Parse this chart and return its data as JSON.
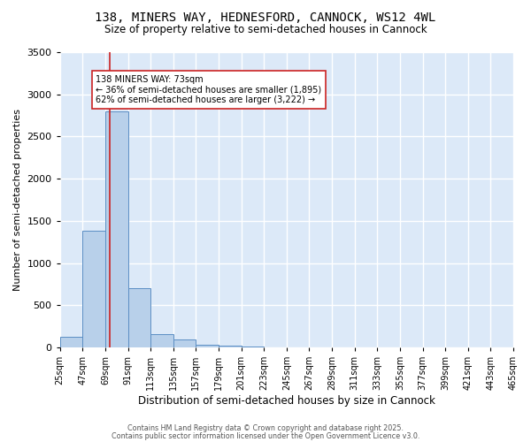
{
  "title": "138, MINERS WAY, HEDNESFORD, CANNOCK, WS12 4WL",
  "subtitle": "Size of property relative to semi-detached houses in Cannock",
  "xlabel": "Distribution of semi-detached houses by size in Cannock",
  "ylabel": "Number of semi-detached properties",
  "bin_edges": [
    25,
    47,
    69,
    91,
    113,
    135,
    157,
    179,
    201,
    223,
    245,
    267,
    289,
    311,
    333,
    355,
    377,
    399,
    421,
    443,
    465
  ],
  "bin_labels": [
    "25sqm",
    "47sqm",
    "69sqm",
    "91sqm",
    "113sqm",
    "135sqm",
    "157sqm",
    "179sqm",
    "201sqm",
    "223sqm",
    "245sqm",
    "267sqm",
    "289sqm",
    "311sqm",
    "333sqm",
    "355sqm",
    "377sqm",
    "399sqm",
    "421sqm",
    "443sqm",
    "465sqm"
  ],
  "counts": [
    130,
    1380,
    2800,
    700,
    160,
    90,
    35,
    20,
    15,
    0,
    0,
    0,
    0,
    0,
    0,
    0,
    0,
    0,
    0,
    0
  ],
  "bar_color": "#b8d0ea",
  "bar_edge_color": "#5b8ec4",
  "vline_x": 73,
  "vline_color": "#cc2222",
  "annotation_line1": "138 MINERS WAY: 73sqm",
  "annotation_line2": "← 36% of semi-detached houses are smaller (1,895)",
  "annotation_line3": "62% of semi-detached houses are larger (3,222) →",
  "annotation_box_color": "#ffffff",
  "annotation_box_edge": "#cc2222",
  "annotation_fontsize": 7.0,
  "ylim": [
    0,
    3500
  ],
  "yticks": [
    0,
    500,
    1000,
    1500,
    2000,
    2500,
    3000,
    3500
  ],
  "bg_color": "#dce9f8",
  "grid_color": "#ffffff",
  "footer1": "Contains HM Land Registry data © Crown copyright and database right 2025.",
  "footer2": "Contains public sector information licensed under the Open Government Licence v3.0.",
  "title_fontsize": 10,
  "subtitle_fontsize": 8.5,
  "xlabel_fontsize": 8.5,
  "ylabel_fontsize": 8,
  "tick_labelsize": 7,
  "ytick_labelsize": 8
}
